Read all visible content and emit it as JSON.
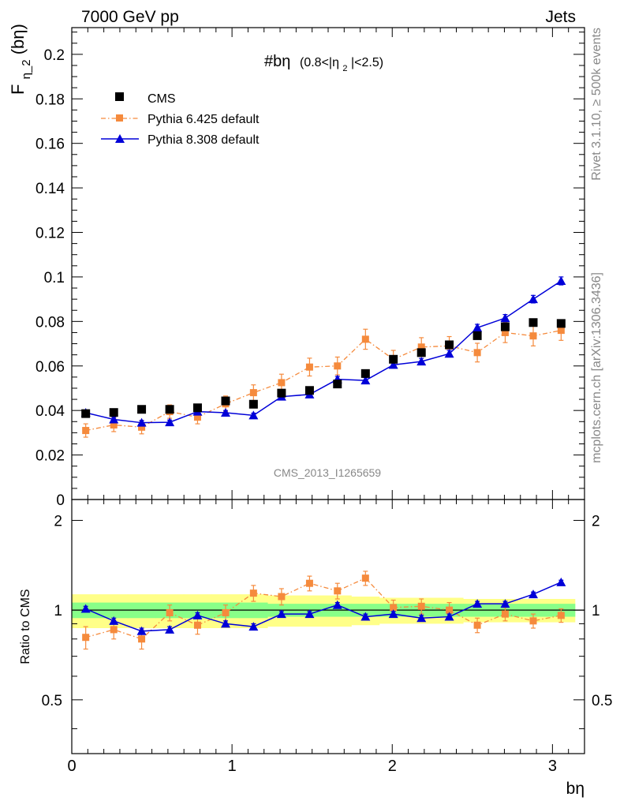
{
  "header": {
    "left": "7000 GeV pp",
    "right": "Jets",
    "side_top": "Rivet 3.1.10, ≥ 500k events",
    "side_bottom": "mcplots.cern.ch [arXiv:1306.3436]",
    "watermark": "CMS_2013_I1265659"
  },
  "colors": {
    "cms": "#000000",
    "py6": "#f58a3c",
    "py8": "#0000d8",
    "band_inner": "#88ff88",
    "band_outer": "#ffff88"
  },
  "chart_data": {
    "type": "scatter",
    "title": "#bη",
    "title_cut": "(0.8<|η",
    "title_cut_sub": "2",
    "title_cut_end": "|<2.5)",
    "ylabel_main": "F",
    "ylabel_sub": "η_2",
    "ylabel_end": "(bη)",
    "ylabel_ratio": "Ratio to CMS",
    "xlabel": "bη",
    "xlim": [
      0,
      3.2
    ],
    "ylim_main": [
      0,
      0.212
    ],
    "ylim_ratio": [
      0.33,
      2.35
    ],
    "x_ticks": [
      "0",
      "1",
      "2",
      "3"
    ],
    "y_ticks_main": [
      "0",
      "0.02",
      "0.04",
      "0.06",
      "0.08",
      "0.1",
      "0.12",
      "0.14",
      "0.16",
      "0.18",
      "0.2"
    ],
    "y_ticks_ratio": [
      "0.5",
      "1",
      "2"
    ],
    "legend": [
      "CMS",
      "Pythia 6.425 default",
      "Pythia 8.308 default"
    ],
    "x": [
      0.087,
      0.262,
      0.436,
      0.611,
      0.785,
      0.96,
      1.134,
      1.309,
      1.484,
      1.658,
      1.833,
      2.007,
      2.182,
      2.356,
      2.531,
      2.705,
      2.88,
      3.054
    ],
    "series": [
      {
        "name": "CMS",
        "values": [
          0.0386,
          0.0391,
          0.0405,
          0.0405,
          0.0412,
          0.0443,
          0.0428,
          0.0478,
          0.049,
          0.0519,
          0.0566,
          0.063,
          0.066,
          0.0695,
          0.0736,
          0.0776,
          0.0795,
          0.0791
        ]
      },
      {
        "name": "Pythia 6.425 default",
        "values": [
          0.031,
          0.0335,
          0.0325,
          0.0395,
          0.037,
          0.043,
          0.048,
          0.0525,
          0.0595,
          0.06,
          0.072,
          0.063,
          0.0685,
          0.069,
          0.066,
          0.075,
          0.0735,
          0.076
        ],
        "errors": [
          0.003,
          0.003,
          0.003,
          0.003,
          0.003,
          0.0035,
          0.0035,
          0.0038,
          0.004,
          0.004,
          0.0045,
          0.004,
          0.0042,
          0.0042,
          0.0042,
          0.0045,
          0.0045,
          0.0045
        ]
      },
      {
        "name": "Pythia 8.308 default",
        "values": [
          0.039,
          0.036,
          0.0345,
          0.0347,
          0.0395,
          0.039,
          0.0378,
          0.0462,
          0.0472,
          0.054,
          0.0535,
          0.0605,
          0.062,
          0.0655,
          0.0772,
          0.0815,
          0.09,
          0.0982
        ],
        "errors": [
          0.001,
          0.001,
          0.001,
          0.001,
          0.001,
          0.001,
          0.001,
          0.0012,
          0.0012,
          0.0013,
          0.0013,
          0.0014,
          0.0014,
          0.0015,
          0.0015,
          0.0016,
          0.0017,
          0.0018
        ]
      }
    ],
    "ratio_series": [
      {
        "name": "Pythia 6.425 default",
        "values": [
          0.81,
          0.86,
          0.8,
          0.98,
          0.89,
          0.98,
          1.14,
          1.11,
          1.23,
          1.16,
          1.28,
          1.02,
          1.03,
          1.0,
          0.89,
          0.97,
          0.92,
          0.96
        ],
        "errors": [
          0.07,
          0.06,
          0.06,
          0.06,
          0.06,
          0.06,
          0.07,
          0.07,
          0.07,
          0.07,
          0.07,
          0.06,
          0.06,
          0.06,
          0.05,
          0.05,
          0.05,
          0.05
        ]
      },
      {
        "name": "Pythia 8.308 default",
        "values": [
          1.01,
          0.92,
          0.85,
          0.86,
          0.96,
          0.9,
          0.88,
          0.97,
          0.97,
          1.04,
          0.95,
          0.97,
          0.94,
          0.95,
          1.05,
          1.05,
          1.13,
          1.24
        ],
        "errors": [
          0.02,
          0.02,
          0.02,
          0.02,
          0.02,
          0.02,
          0.02,
          0.02,
          0.02,
          0.02,
          0.02,
          0.02,
          0.02,
          0.02,
          0.02,
          0.02,
          0.02,
          0.02
        ]
      }
    ],
    "band_inner": [
      0.06,
      0.06,
      0.06,
      0.06,
      0.06,
      0.06,
      0.06,
      0.05,
      0.05,
      0.05,
      0.05,
      0.05,
      0.05,
      0.05,
      0.05,
      0.05,
      0.05,
      0.05
    ],
    "band_outer": [
      0.13,
      0.13,
      0.13,
      0.13,
      0.13,
      0.13,
      0.13,
      0.12,
      0.12,
      0.12,
      0.11,
      0.1,
      0.1,
      0.1,
      0.09,
      0.09,
      0.09,
      0.09
    ]
  }
}
